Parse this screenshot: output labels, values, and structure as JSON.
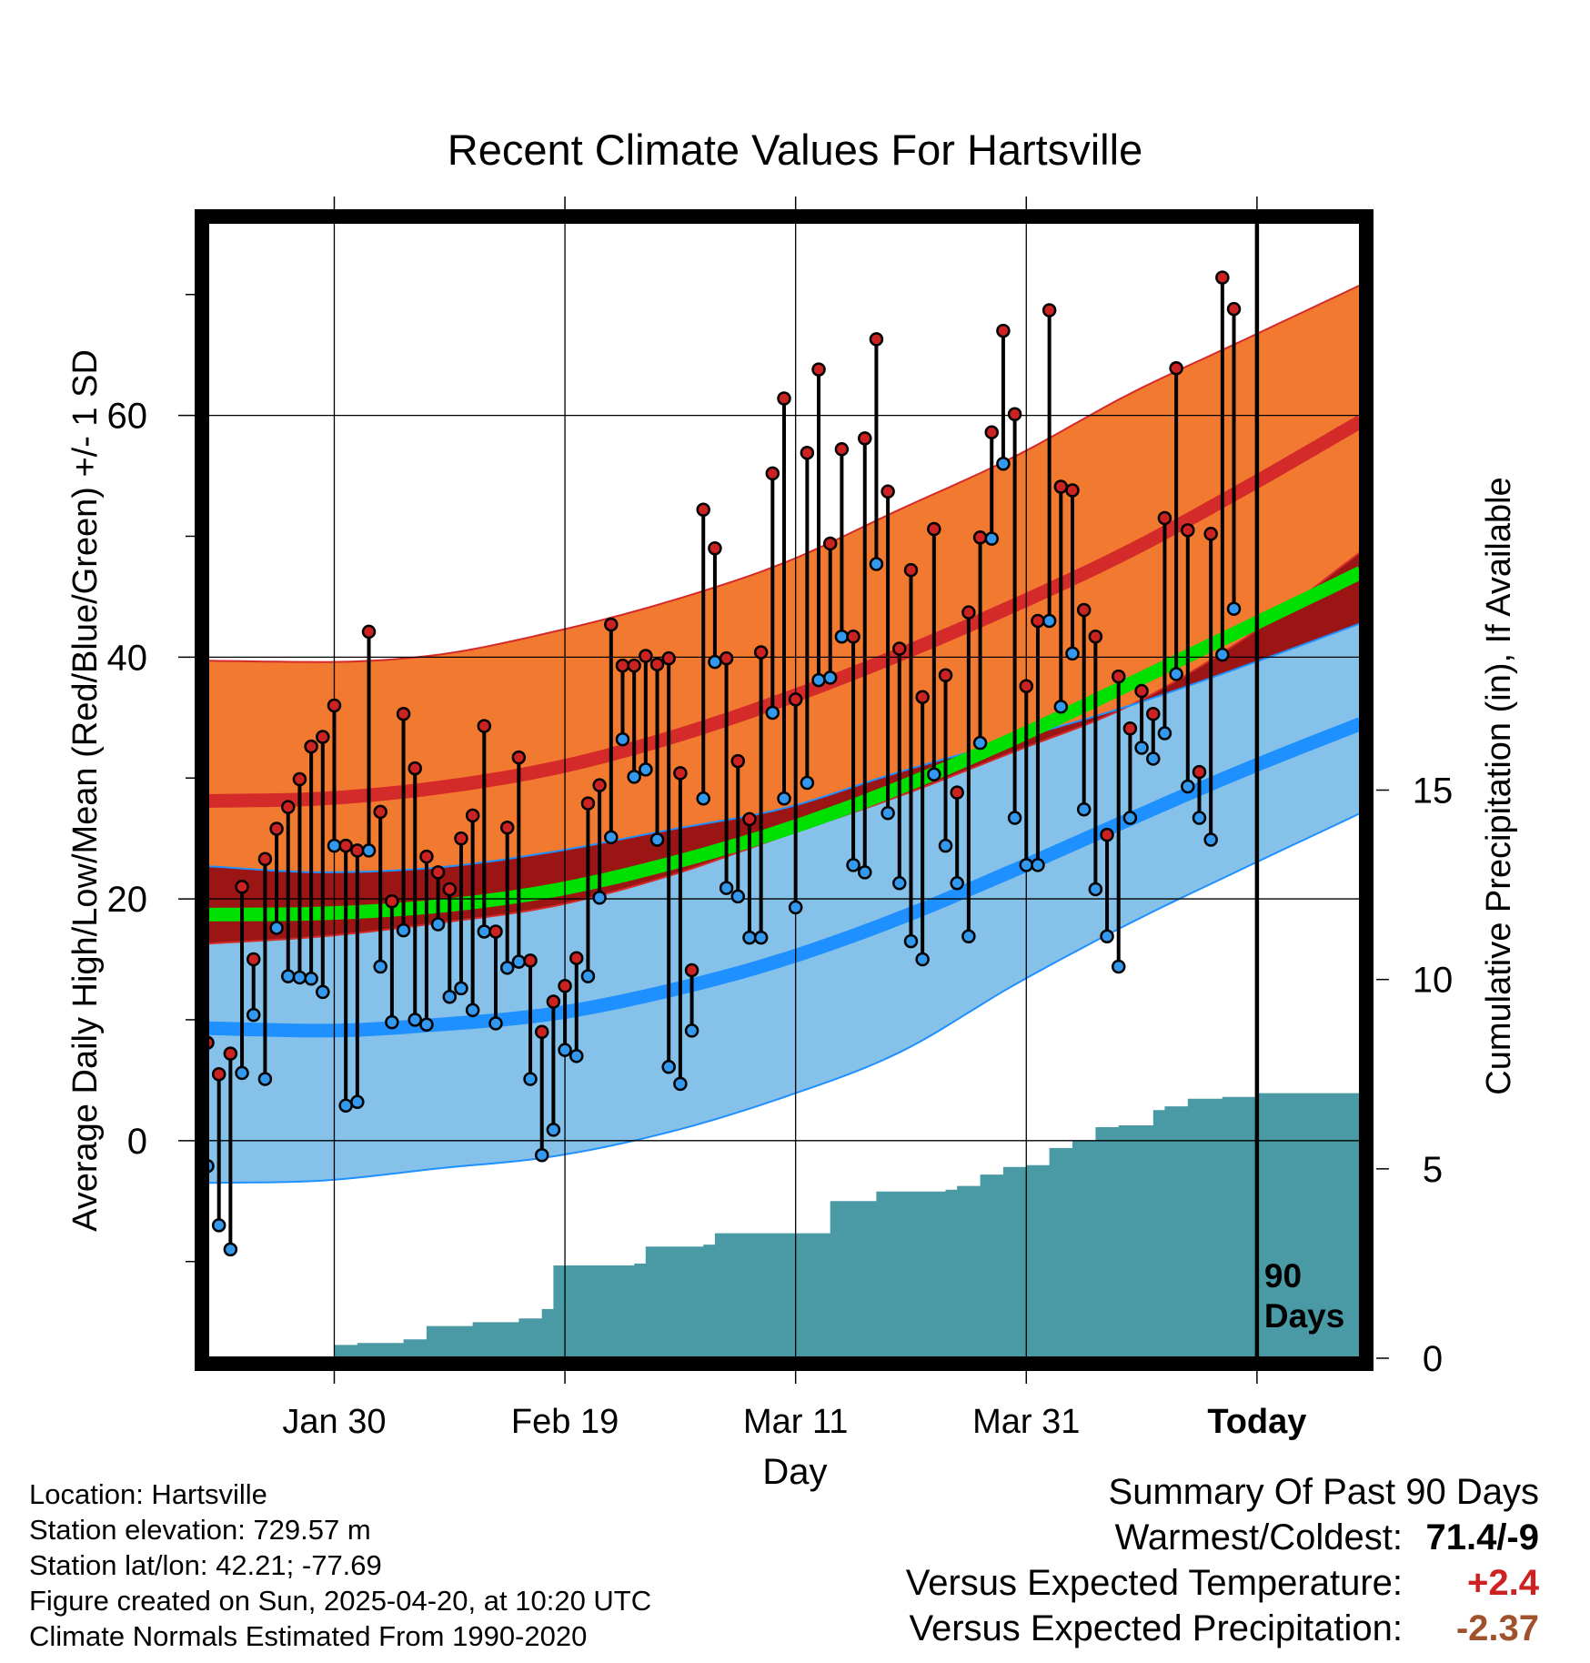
{
  "chart_data": {
    "type": "line",
    "title": "Recent Climate Values For Hartsville",
    "xlabel": "Day",
    "ylabel_left": "Average Daily High/Low/Mean (Red/Blue/Green) +/- 1 SD",
    "ylabel_right": "Cumulative Precipitation (in), If Available",
    "x_ticks": [
      "Jan 30",
      "Feb 19",
      "Mar 11",
      "Mar 31",
      "Today"
    ],
    "x_tick_dates": [
      "2025-01-30",
      "2025-02-19",
      "2025-03-11",
      "2025-03-31",
      "2025-04-20"
    ],
    "x_range": [
      "2025-01-19",
      "2025-04-29"
    ],
    "y_left_range": [
      -18,
      76
    ],
    "y_left_ticks": [
      0,
      20,
      40,
      60
    ],
    "y_right_range": [
      0,
      30
    ],
    "y_right_ticks": [
      0,
      5,
      10,
      15
    ],
    "grid": true,
    "marker_label": "90\nDays",
    "marker_date": "2025-04-20",
    "normal_dates": [
      "2025-01-19",
      "2025-01-29",
      "2025-02-08",
      "2025-02-18",
      "2025-02-28",
      "2025-03-10",
      "2025-03-20",
      "2025-03-30",
      "2025-04-09",
      "2025-04-19",
      "2025-04-29"
    ],
    "normal_high": [
      28.1,
      28.3,
      29.2,
      30.8,
      33.3,
      36.5,
      40.2,
      44.3,
      48.8,
      54.0,
      59.5
    ],
    "normal_high_sd_upper": [
      39.7,
      39.6,
      40.2,
      42.1,
      44.6,
      47.8,
      52.2,
      56.6,
      61.8,
      66.3,
      70.8
    ],
    "normal_high_sd_lower": [
      16.3,
      16.9,
      18.0,
      19.4,
      21.9,
      25.2,
      28.5,
      32.2,
      36.0,
      41.6,
      48.7
    ],
    "normal_low": [
      9.3,
      9.1,
      9.6,
      10.5,
      12.4,
      15.0,
      18.4,
      22.4,
      26.6,
      30.7,
      34.5
    ],
    "normal_low_sd_upper": [
      22.7,
      22.2,
      22.6,
      23.9,
      25.7,
      27.5,
      30.5,
      33.2,
      36.0,
      39.3,
      42.8
    ],
    "normal_low_sd_lower": [
      -3.5,
      -3.3,
      -2.3,
      -1.3,
      0.7,
      3.6,
      7.3,
      12.9,
      18.0,
      22.6,
      27.1
    ],
    "normal_mean": [
      18.7,
      18.8,
      19.4,
      20.7,
      22.9,
      25.7,
      29.2,
      33.3,
      37.8,
      42.4,
      47.0
    ],
    "series": [
      {
        "name": "High",
        "color": "#cc2222",
        "dates_start": "2025-01-19",
        "values": [
          8.1,
          5.5,
          7.2,
          21.0,
          15.0,
          23.3,
          25.8,
          27.6,
          29.9,
          32.6,
          33.4,
          36.0,
          24.4,
          24.0,
          42.1,
          27.2,
          19.8,
          35.3,
          30.8,
          23.5,
          22.2,
          20.8,
          25.0,
          26.9,
          34.3,
          17.3,
          25.9,
          31.7,
          14.9,
          9.0,
          11.5,
          12.8,
          15.1,
          27.9,
          29.4,
          42.7,
          39.3,
          39.3,
          40.1,
          39.4,
          39.9,
          30.4,
          14.1,
          52.2,
          49.0,
          39.9,
          31.4,
          26.6,
          40.4,
          55.2,
          61.4,
          36.5,
          56.9,
          63.8,
          49.4,
          57.2,
          41.7,
          58.1,
          66.3,
          53.7,
          40.7,
          47.2,
          36.7,
          50.6,
          38.5,
          28.8,
          43.7,
          49.9,
          58.6,
          67.0,
          60.1,
          37.6,
          43.0,
          68.7,
          54.1,
          53.8,
          43.9,
          41.7,
          25.3,
          38.4,
          34.1,
          37.2,
          35.3,
          51.5,
          63.9,
          50.5,
          30.5,
          50.2,
          71.4,
          68.8
        ]
      },
      {
        "name": "Low",
        "color": "#3399ee",
        "dates_start": "2025-01-19",
        "values": [
          -2.1,
          -7.0,
          -9.0,
          5.6,
          10.4,
          5.1,
          17.6,
          13.6,
          13.5,
          13.4,
          12.3,
          24.4,
          2.9,
          3.2,
          24.0,
          14.4,
          9.8,
          17.4,
          10.0,
          9.6,
          17.9,
          11.9,
          12.6,
          10.8,
          17.3,
          9.7,
          14.3,
          14.8,
          5.1,
          -1.2,
          0.9,
          7.5,
          7.0,
          13.6,
          20.1,
          25.1,
          33.2,
          30.1,
          30.7,
          24.9,
          6.1,
          4.7,
          9.1,
          28.3,
          39.6,
          20.9,
          20.2,
          16.8,
          16.8,
          35.4,
          28.3,
          19.3,
          29.6,
          38.1,
          38.3,
          41.7,
          22.8,
          22.2,
          47.7,
          27.1,
          21.3,
          16.5,
          15.0,
          30.3,
          24.4,
          21.3,
          16.9,
          32.9,
          49.8,
          56.0,
          26.7,
          22.8,
          22.8,
          43.0,
          35.9,
          40.3,
          27.4,
          20.8,
          16.9,
          14.4,
          26.7,
          32.5,
          31.6,
          33.7,
          38.6,
          29.3,
          26.7,
          24.9,
          40.2,
          44.0
        ]
      }
    ],
    "precip_dates": [
      "2025-01-29",
      "2025-01-30",
      "2025-02-01",
      "2025-02-05",
      "2025-02-07",
      "2025-02-11",
      "2025-02-15",
      "2025-02-17",
      "2025-02-18",
      "2025-02-25",
      "2025-02-26",
      "2025-03-03",
      "2025-03-04",
      "2025-03-13",
      "2025-03-14",
      "2025-03-17",
      "2025-03-18",
      "2025-03-24",
      "2025-03-25",
      "2025-03-27",
      "2025-03-29",
      "2025-03-31",
      "2025-04-02",
      "2025-04-04",
      "2025-04-06",
      "2025-04-08",
      "2025-04-11",
      "2025-04-12",
      "2025-04-14",
      "2025-04-17",
      "2025-04-20",
      "2025-04-29"
    ],
    "precip_cumulative": [
      0.0,
      0.35,
      0.4,
      0.5,
      0.85,
      0.95,
      1.05,
      1.3,
      2.45,
      2.5,
      2.95,
      3.0,
      3.3,
      3.3,
      4.15,
      4.15,
      4.4,
      4.45,
      4.55,
      4.85,
      5.05,
      5.1,
      5.55,
      5.75,
      6.1,
      6.15,
      6.55,
      6.65,
      6.85,
      6.9,
      7.0,
      7.0
    ]
  },
  "footer": {
    "location": "Location: Hartsville",
    "elevation": "Station elevation: 729.57 m",
    "latlon": "Station lat/lon: 42.21; -77.69",
    "created": "Figure created on Sun, 2025-04-20, at 10:20 UTC",
    "normals": "Climate Normals Estimated From 1990-2020"
  },
  "summary": {
    "heading": "Summary Of Past 90 Days",
    "warmest_coldest_label": "Warmest/Coldest:",
    "warmest_coldest_value": "71.4/-9",
    "temp_label": "Versus Expected Temperature:",
    "temp_value": "+2.4",
    "temp_color": "#cc2222",
    "precip_label": "Versus Expected Precipitation:",
    "precip_value": "-2.37",
    "precip_color": "#a0522d"
  },
  "colors": {
    "high_band": "#f27a30",
    "high_line": "#d42a2a",
    "low_band": "#85c1e9",
    "low_line": "#1e90ff",
    "mean_line": "#00e000",
    "overlap_band": "#9b1515",
    "precip_fill": "#4a9aa5"
  }
}
